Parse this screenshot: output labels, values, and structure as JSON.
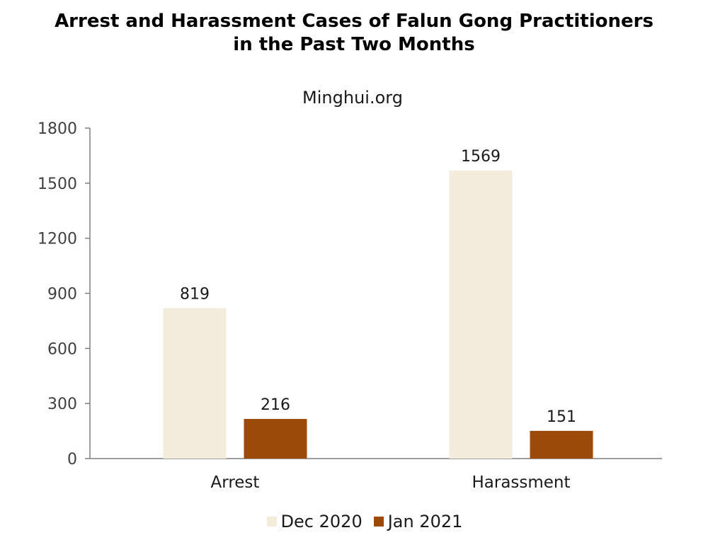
{
  "chart_data": {
    "type": "bar",
    "title_lines": [
      "Arrest and Harassment Cases of Falun Gong Practitioners",
      "in the Past Two Months"
    ],
    "subtitle": "Minghui.org",
    "categories": [
      "Arrest",
      "Harassment"
    ],
    "series": [
      {
        "name": "Dec 2020",
        "values": [
          819,
          1569
        ],
        "color": "#f3ebdb"
      },
      {
        "name": "Jan 2021",
        "values": [
          216,
          151
        ],
        "color": "#9c4a0a"
      }
    ],
    "y_ticks": [
      "0",
      "300",
      "600",
      "900",
      "1200",
      "1500",
      "1800"
    ],
    "ylim": [
      0,
      1800
    ],
    "grid": false,
    "legend_position": "bottom"
  }
}
